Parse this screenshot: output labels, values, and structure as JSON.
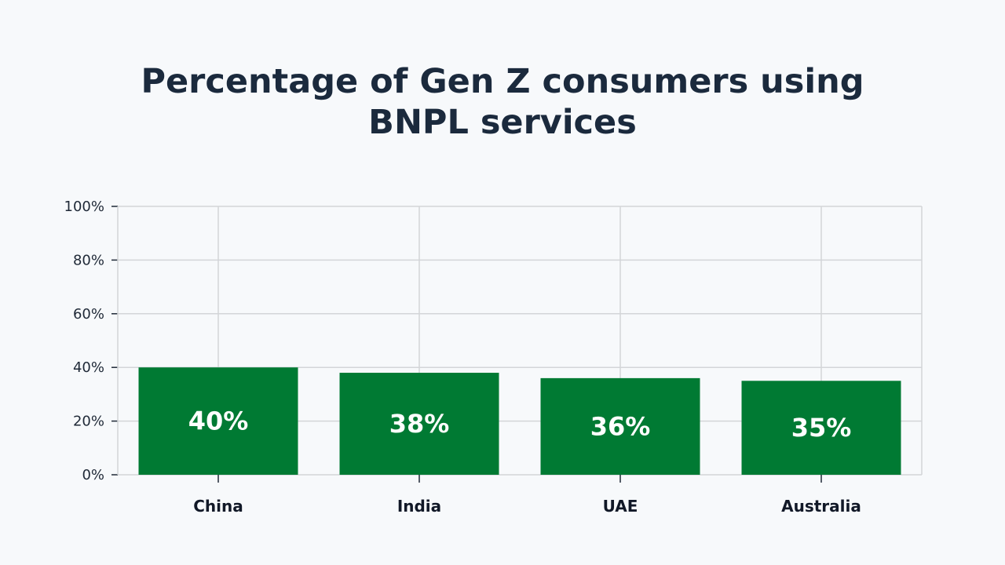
{
  "chart_data": {
    "type": "bar",
    "title": [
      "Percentage of Gen Z consumers using",
      "BNPL services"
    ],
    "categories": [
      "China",
      "India",
      "UAE",
      "Australia"
    ],
    "values": [
      40,
      38,
      36,
      35
    ],
    "data_labels": [
      "40%",
      "38%",
      "36%",
      "35%"
    ],
    "ylim": [
      0,
      100
    ],
    "yticks": [
      0,
      20,
      40,
      60,
      80,
      100
    ],
    "ytick_labels": [
      "0%",
      "20%",
      "40%",
      "60%",
      "80%",
      "100%"
    ],
    "grid": true,
    "legend": false,
    "colors": {
      "bar": "#007a33",
      "grid": "#d3d5d8",
      "axis": "#1f2937",
      "background": "#f7f9fb"
    }
  }
}
